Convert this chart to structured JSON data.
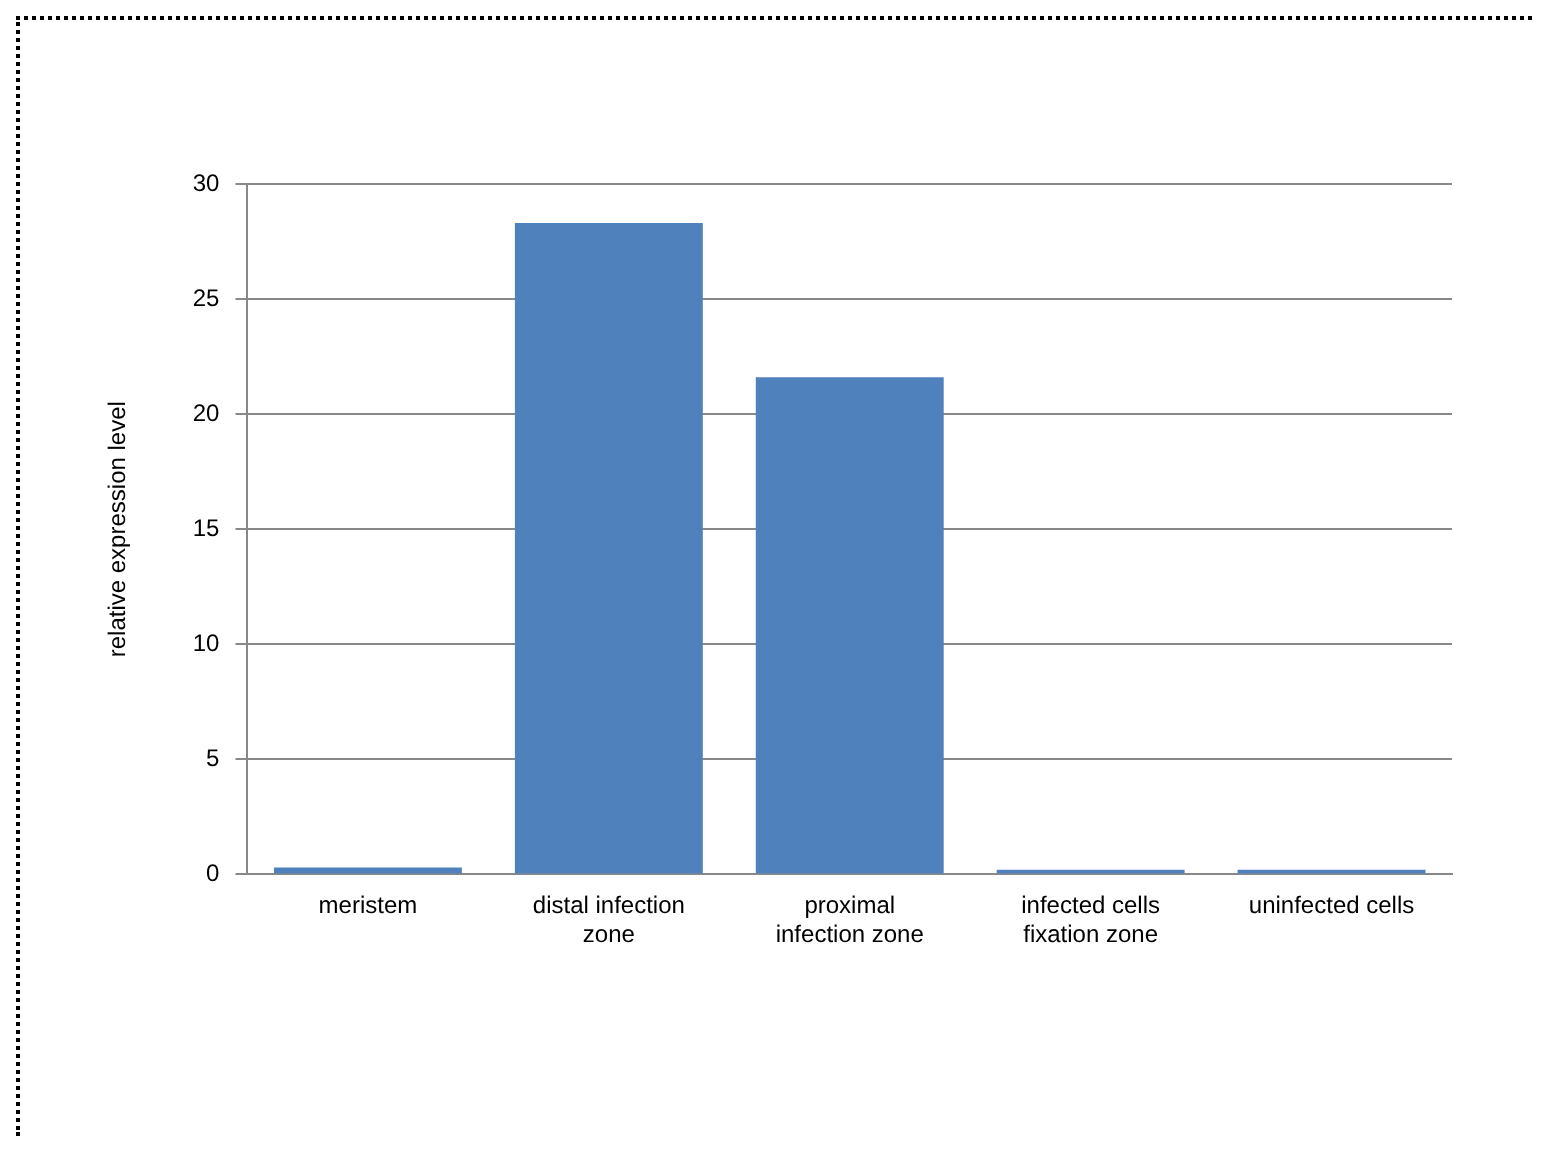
{
  "chart_data": {
    "type": "bar",
    "ylabel": "relative expression level",
    "categories": [
      "meristem",
      "distal infection zone",
      "proximal infection zone",
      "infected cells fixation zone",
      "uninfected cells"
    ],
    "values": [
      0.3,
      28.3,
      21.6,
      0.2,
      0.2
    ],
    "color": "#4f81bd",
    "ylim": [
      0,
      30
    ],
    "yticks": [
      0,
      5,
      10,
      15,
      20,
      25,
      30
    ],
    "grid": "y",
    "legend": false
  }
}
